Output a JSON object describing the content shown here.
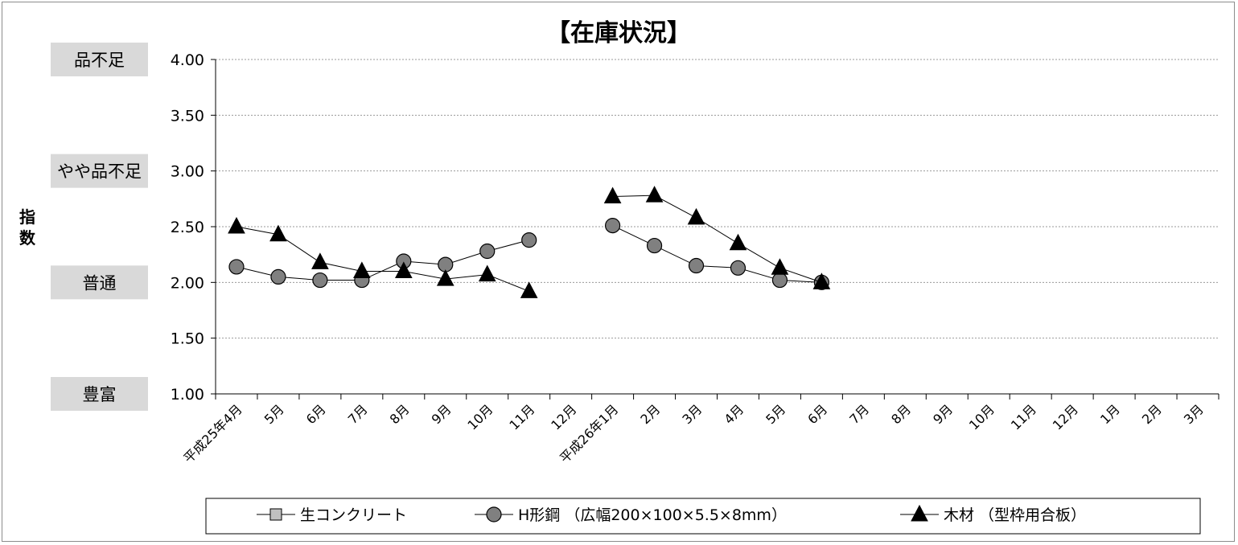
{
  "chart_data": {
    "type": "line",
    "title": "【在庫状況】",
    "ylabel": "指数",
    "ylim": [
      1.0,
      4.0
    ],
    "yticks": [
      "4.00",
      "3.50",
      "3.00",
      "2.50",
      "2.00",
      "1.50",
      "1.00"
    ],
    "y_category_labels": [
      {
        "value": 4.0,
        "label": "品不足"
      },
      {
        "value": 3.0,
        "label": "やや品不足"
      },
      {
        "value": 2.0,
        "label": "普通"
      },
      {
        "value": 1.0,
        "label": "豊富"
      }
    ],
    "categories": [
      "平成25年4月",
      "5月",
      "6月",
      "7月",
      "8月",
      "9月",
      "10月",
      "11月",
      "12月",
      "平成26年1月",
      "2月",
      "3月",
      "4月",
      "5月",
      "6月",
      "7月",
      "8月",
      "9月",
      "10月",
      "11月",
      "12月",
      "1月",
      "2月",
      "3月"
    ],
    "grid": true,
    "legend_position": "bottom",
    "series": [
      {
        "name": "生コンクリート",
        "marker": "square",
        "color": "#c0c0c0",
        "values": [
          null,
          null,
          null,
          null,
          null,
          null,
          null,
          null,
          null,
          null,
          null,
          null,
          null,
          null,
          null,
          null,
          null,
          null,
          null,
          null,
          null,
          null,
          null,
          null
        ]
      },
      {
        "name": "H形鋼 （広幅200×100×5.5×8mm）",
        "marker": "circle",
        "color": "#808080",
        "values": [
          2.14,
          2.05,
          2.02,
          2.02,
          2.19,
          2.16,
          2.28,
          2.38,
          null,
          2.51,
          2.33,
          2.15,
          2.13,
          2.02,
          2.0,
          null,
          null,
          null,
          null,
          null,
          null,
          null,
          null,
          null
        ]
      },
      {
        "name": "木材 （型枠用合板）",
        "marker": "triangle",
        "color": "#000000",
        "values": [
          2.5,
          2.43,
          2.18,
          2.1,
          2.1,
          2.03,
          2.07,
          1.92,
          null,
          2.77,
          2.78,
          2.58,
          2.35,
          2.13,
          2.0,
          null,
          null,
          null,
          null,
          null,
          null,
          null,
          null,
          null
        ]
      }
    ]
  }
}
